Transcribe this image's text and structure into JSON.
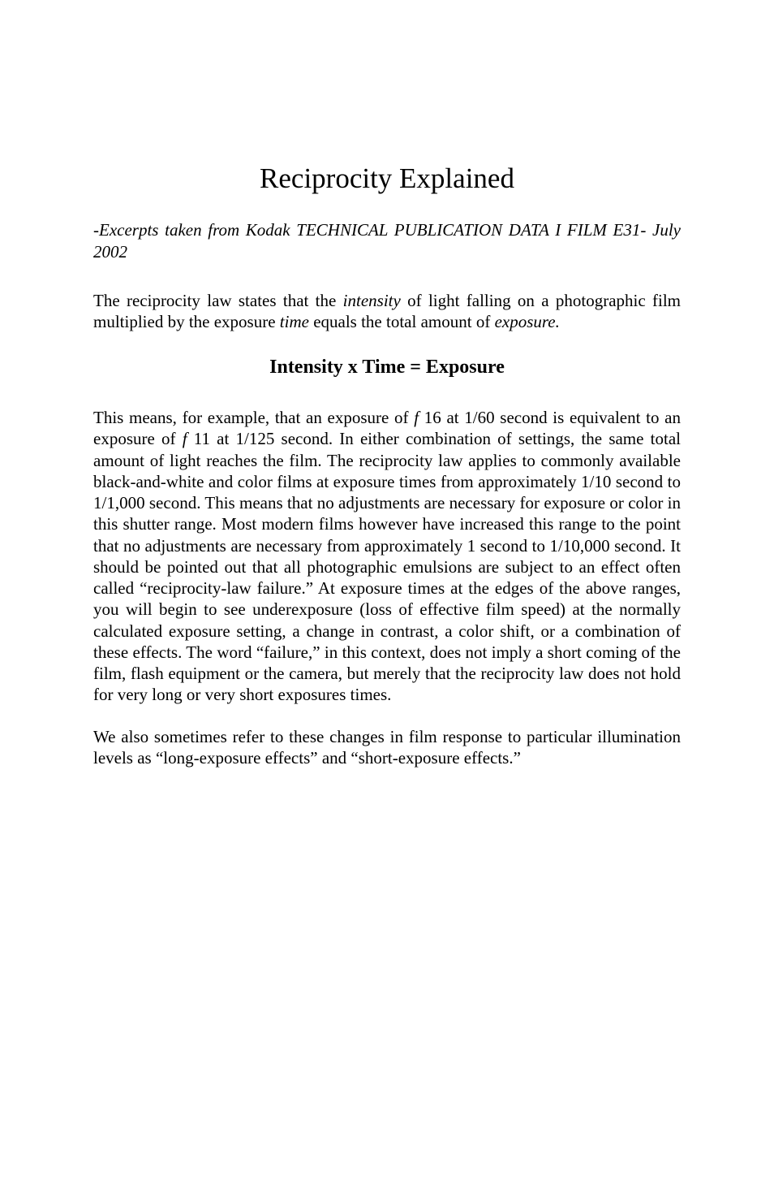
{
  "title": "Reciprocity Explained",
  "subtitle_prefix": "-Excerpts taken from Kodak TECHNICAL PUBLICATION DATA I FILM E31- July 2002",
  "intro": {
    "part1": "The reciprocity law states that the ",
    "italic1": "intensity",
    "part2": " of light falling on a photographic film multiplied by the exposure ",
    "italic2": "time",
    "part3": " equals the total amount of ",
    "italic3": "exposure.",
    "part4": ""
  },
  "equation": "Intensity x Time = Exposure",
  "body1": {
    "part1": "This means, for example, that an exposure of  ",
    "italic1": "f ",
    "part2": "16 at 1/60 second is equivalent to an exposure of  ",
    "italic2": "f ",
    "part3": "11 at 1/125 second. In either combination of settings, the same total amount of light reaches the film. The reciprocity law applies to commonly available black-and-white and color films at exposure times from approximately 1/10 second to 1/1,000 second. This means that no adjustments are necessary for exposure or color in this shutter range. Most modern films however have increased this range to the point that no adjustments are necessary from approximately 1 second to 1/10,000 second. It should be pointed out that all photographic emulsions are subject to an effect often called “reciprocity-law failure.” At exposure times at the edges of the above ranges, you will begin to see underexposure (loss of effective film speed) at the normally calculated exposure setting, a change in contrast, a color shift, or a combination of these effects. The word “failure,” in this context, does not imply a short coming of the film, flash equipment or the camera, but merely that the reciprocity law does not hold for very long or very short exposures times."
  },
  "body2": "We also sometimes refer to these changes in film response to particular illumination levels as “long-exposure effects” and “short-exposure effects.”"
}
